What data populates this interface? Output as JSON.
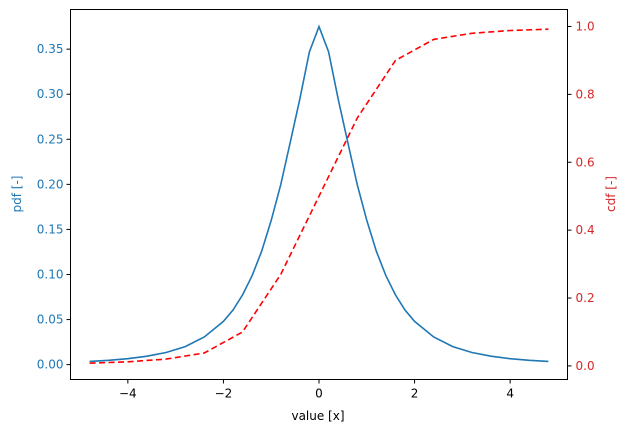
{
  "chart_data": {
    "type": "line",
    "title": "",
    "xlabel": "value [x]",
    "ylabel_left": "pdf [-]",
    "ylabel_right": "cdf [-]",
    "xlim": [
      -5.2,
      5.2
    ],
    "ylim_left": [
      -0.0165,
      0.394
    ],
    "ylim_right": [
      -0.04,
      1.05
    ],
    "xticks": [
      -4,
      -2,
      0,
      2,
      4
    ],
    "xtick_labels": [
      "−4",
      "−2",
      "0",
      "2",
      "4"
    ],
    "yticks_left": [
      0.0,
      0.05,
      0.1,
      0.15,
      0.2,
      0.25,
      0.3,
      0.35
    ],
    "ytick_labels_left": [
      "0.00",
      "0.05",
      "0.10",
      "0.15",
      "0.20",
      "0.25",
      "0.30",
      "0.35"
    ],
    "yticks_right": [
      0.0,
      0.2,
      0.4,
      0.6,
      0.8,
      1.0
    ],
    "ytick_labels_right": [
      "0.0",
      "0.2",
      "0.4",
      "0.6",
      "0.8",
      "1.0"
    ],
    "grid": false,
    "legend": null,
    "colors": {
      "pdf": "#1f77b4",
      "cdf": "#ff0000",
      "left_axis_text": "#1f77b4",
      "right_axis_text": "#d62728"
    },
    "series": [
      {
        "name": "pdf",
        "axis": "left",
        "style": "solid",
        "x": [
          -4.8,
          -4.4,
          -4.0,
          -3.6,
          -3.2,
          -2.8,
          -2.4,
          -2.0,
          -1.8,
          -1.6,
          -1.4,
          -1.2,
          -1.0,
          -0.8,
          -0.6,
          -0.4,
          -0.2,
          0.0,
          0.2,
          0.4,
          0.6,
          0.8,
          1.0,
          1.2,
          1.4,
          1.6,
          1.8,
          2.0,
          2.4,
          2.8,
          3.2,
          3.6,
          4.0,
          4.4,
          4.8
        ],
        "values": [
          0.0036,
          0.0048,
          0.0066,
          0.0093,
          0.0135,
          0.02,
          0.0306,
          0.048,
          0.0606,
          0.0772,
          0.0987,
          0.126,
          0.16,
          0.2,
          0.247,
          0.295,
          0.347,
          0.375,
          0.347,
          0.295,
          0.247,
          0.2,
          0.16,
          0.126,
          0.0987,
          0.0772,
          0.0606,
          0.048,
          0.0306,
          0.02,
          0.0135,
          0.0093,
          0.0066,
          0.0048,
          0.0036
        ]
      },
      {
        "name": "cdf",
        "axis": "right",
        "style": "dashed",
        "x": [
          -4.8,
          -4.0,
          -3.2,
          -2.4,
          -1.6,
          -0.8,
          0.0,
          0.8,
          1.6,
          2.4,
          3.2,
          4.0,
          4.8
        ],
        "values": [
          0.008,
          0.012,
          0.02,
          0.038,
          0.1,
          0.27,
          0.5,
          0.73,
          0.9,
          0.962,
          0.98,
          0.988,
          0.992
        ]
      }
    ]
  }
}
